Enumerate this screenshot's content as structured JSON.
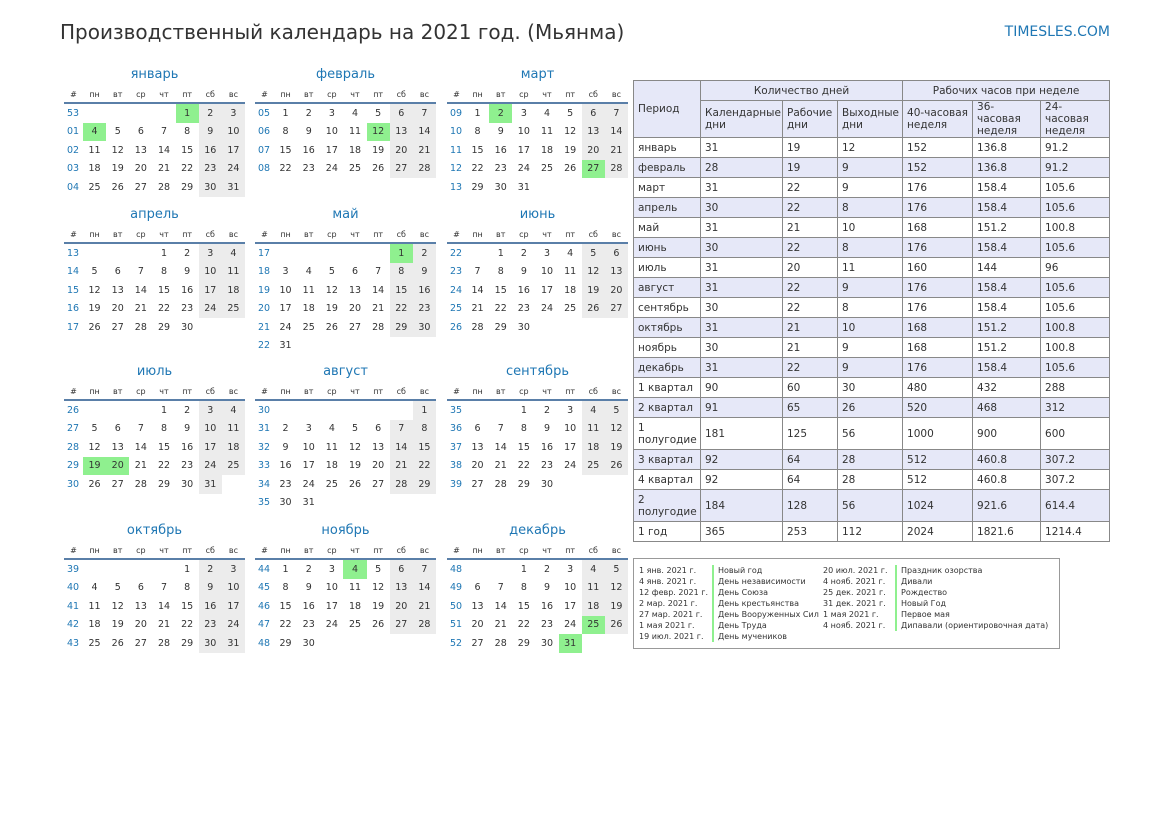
{
  "title": "Производственный календарь на 2021 год. (Мьянма)",
  "site": "TIMESLES.COM",
  "colors": {
    "accent": "#1f77b4",
    "holiday": "#8ff08f",
    "weekend": "#ececec",
    "rule": "#5a7fa8",
    "table_alt": "#e6e8f8"
  },
  "weekday_header": [
    "#",
    "пн",
    "вт",
    "ср",
    "чт",
    "пт",
    "сб",
    "вс"
  ],
  "months": [
    {
      "name": "январь",
      "rows": [
        [
          "53",
          "",
          "",
          "",
          "",
          "1",
          "2",
          "3"
        ],
        [
          "01",
          "4",
          "5",
          "6",
          "7",
          "8",
          "9",
          "10"
        ],
        [
          "02",
          "11",
          "12",
          "13",
          "14",
          "15",
          "16",
          "17"
        ],
        [
          "03",
          "18",
          "19",
          "20",
          "21",
          "22",
          "23",
          "24"
        ],
        [
          "04",
          "25",
          "26",
          "27",
          "28",
          "29",
          "30",
          "31"
        ]
      ],
      "holidays": [
        "1",
        "4"
      ]
    },
    {
      "name": "февраль",
      "rows": [
        [
          "05",
          "1",
          "2",
          "3",
          "4",
          "5",
          "6",
          "7"
        ],
        [
          "06",
          "8",
          "9",
          "10",
          "11",
          "12",
          "13",
          "14"
        ],
        [
          "07",
          "15",
          "16",
          "17",
          "18",
          "19",
          "20",
          "21"
        ],
        [
          "08",
          "22",
          "23",
          "24",
          "25",
          "26",
          "27",
          "28"
        ]
      ],
      "holidays": [
        "12"
      ]
    },
    {
      "name": "март",
      "rows": [
        [
          "09",
          "1",
          "2",
          "3",
          "4",
          "5",
          "6",
          "7"
        ],
        [
          "10",
          "8",
          "9",
          "10",
          "11",
          "12",
          "13",
          "14"
        ],
        [
          "11",
          "15",
          "16",
          "17",
          "18",
          "19",
          "20",
          "21"
        ],
        [
          "12",
          "22",
          "23",
          "24",
          "25",
          "26",
          "27",
          "28"
        ],
        [
          "13",
          "29",
          "30",
          "31",
          "",
          "",
          "",
          ""
        ]
      ],
      "holidays": [
        "2",
        "27"
      ]
    },
    {
      "name": "апрель",
      "rows": [
        [
          "13",
          "",
          "",
          "",
          "1",
          "2",
          "3",
          "4"
        ],
        [
          "14",
          "5",
          "6",
          "7",
          "8",
          "9",
          "10",
          "11"
        ],
        [
          "15",
          "12",
          "13",
          "14",
          "15",
          "16",
          "17",
          "18"
        ],
        [
          "16",
          "19",
          "20",
          "21",
          "22",
          "23",
          "24",
          "25"
        ],
        [
          "17",
          "26",
          "27",
          "28",
          "29",
          "30",
          "",
          ""
        ]
      ],
      "holidays": []
    },
    {
      "name": "май",
      "rows": [
        [
          "17",
          "",
          "",
          "",
          "",
          "",
          "1",
          "2"
        ],
        [
          "18",
          "3",
          "4",
          "5",
          "6",
          "7",
          "8",
          "9"
        ],
        [
          "19",
          "10",
          "11",
          "12",
          "13",
          "14",
          "15",
          "16"
        ],
        [
          "20",
          "17",
          "18",
          "19",
          "20",
          "21",
          "22",
          "23"
        ],
        [
          "21",
          "24",
          "25",
          "26",
          "27",
          "28",
          "29",
          "30"
        ],
        [
          "22",
          "31",
          "",
          "",
          "",
          "",
          "",
          ""
        ]
      ],
      "holidays": [
        "1"
      ]
    },
    {
      "name": "июнь",
      "rows": [
        [
          "22",
          "",
          "1",
          "2",
          "3",
          "4",
          "5",
          "6"
        ],
        [
          "23",
          "7",
          "8",
          "9",
          "10",
          "11",
          "12",
          "13"
        ],
        [
          "24",
          "14",
          "15",
          "16",
          "17",
          "18",
          "19",
          "20"
        ],
        [
          "25",
          "21",
          "22",
          "23",
          "24",
          "25",
          "26",
          "27"
        ],
        [
          "26",
          "28",
          "29",
          "30",
          "",
          "",
          "",
          ""
        ]
      ],
      "holidays": []
    },
    {
      "name": "июль",
      "rows": [
        [
          "26",
          "",
          "",
          "",
          "1",
          "2",
          "3",
          "4"
        ],
        [
          "27",
          "5",
          "6",
          "7",
          "8",
          "9",
          "10",
          "11"
        ],
        [
          "28",
          "12",
          "13",
          "14",
          "15",
          "16",
          "17",
          "18"
        ],
        [
          "29",
          "19",
          "20",
          "21",
          "22",
          "23",
          "24",
          "25"
        ],
        [
          "30",
          "26",
          "27",
          "28",
          "29",
          "30",
          "31",
          ""
        ]
      ],
      "holidays": [
        "19",
        "20"
      ]
    },
    {
      "name": "август",
      "rows": [
        [
          "30",
          "",
          "",
          "",
          "",
          "",
          "",
          "1"
        ],
        [
          "31",
          "2",
          "3",
          "4",
          "5",
          "6",
          "7",
          "8"
        ],
        [
          "32",
          "9",
          "10",
          "11",
          "12",
          "13",
          "14",
          "15"
        ],
        [
          "33",
          "16",
          "17",
          "18",
          "19",
          "20",
          "21",
          "22"
        ],
        [
          "34",
          "23",
          "24",
          "25",
          "26",
          "27",
          "28",
          "29"
        ],
        [
          "35",
          "30",
          "31",
          "",
          "",
          "",
          "",
          ""
        ]
      ],
      "holidays": []
    },
    {
      "name": "сентябрь",
      "rows": [
        [
          "35",
          "",
          "",
          "1",
          "2",
          "3",
          "4",
          "5"
        ],
        [
          "36",
          "6",
          "7",
          "8",
          "9",
          "10",
          "11",
          "12"
        ],
        [
          "37",
          "13",
          "14",
          "15",
          "16",
          "17",
          "18",
          "19"
        ],
        [
          "38",
          "20",
          "21",
          "22",
          "23",
          "24",
          "25",
          "26"
        ],
        [
          "39",
          "27",
          "28",
          "29",
          "30",
          "",
          "",
          ""
        ]
      ],
      "holidays": []
    },
    {
      "name": "октябрь",
      "rows": [
        [
          "39",
          "",
          "",
          "",
          "",
          "1",
          "2",
          "3"
        ],
        [
          "40",
          "4",
          "5",
          "6",
          "7",
          "8",
          "9",
          "10"
        ],
        [
          "41",
          "11",
          "12",
          "13",
          "14",
          "15",
          "16",
          "17"
        ],
        [
          "42",
          "18",
          "19",
          "20",
          "21",
          "22",
          "23",
          "24"
        ],
        [
          "43",
          "25",
          "26",
          "27",
          "28",
          "29",
          "30",
          "31"
        ]
      ],
      "holidays": []
    },
    {
      "name": "ноябрь",
      "rows": [
        [
          "44",
          "1",
          "2",
          "3",
          "4",
          "5",
          "6",
          "7"
        ],
        [
          "45",
          "8",
          "9",
          "10",
          "11",
          "12",
          "13",
          "14"
        ],
        [
          "46",
          "15",
          "16",
          "17",
          "18",
          "19",
          "20",
          "21"
        ],
        [
          "47",
          "22",
          "23",
          "24",
          "25",
          "26",
          "27",
          "28"
        ],
        [
          "48",
          "29",
          "30",
          "",
          "",
          "",
          "",
          ""
        ]
      ],
      "holidays": [
        "4"
      ]
    },
    {
      "name": "декабрь",
      "rows": [
        [
          "48",
          "",
          "",
          "1",
          "2",
          "3",
          "4",
          "5"
        ],
        [
          "49",
          "6",
          "7",
          "8",
          "9",
          "10",
          "11",
          "12"
        ],
        [
          "50",
          "13",
          "14",
          "15",
          "16",
          "17",
          "18",
          "19"
        ],
        [
          "51",
          "20",
          "21",
          "22",
          "23",
          "24",
          "25",
          "26"
        ],
        [
          "52",
          "27",
          "28",
          "29",
          "30",
          "31",
          "",
          ""
        ]
      ],
      "holidays": [
        "25",
        "31"
      ]
    }
  ],
  "summary": {
    "period": "Период",
    "days_group": "Количество дней",
    "hours_group": "Рабочих часов при неделе",
    "col_calendar": "Календарные дни",
    "col_work": "Рабочие дни",
    "col_off": "Выходные дни",
    "col_40": "40-часовая неделя",
    "col_36": "36-часовая неделя",
    "col_24": "24-часовая неделя",
    "rows": [
      [
        "январь",
        "31",
        "19",
        "12",
        "152",
        "136.8",
        "91.2"
      ],
      [
        "февраль",
        "28",
        "19",
        "9",
        "152",
        "136.8",
        "91.2"
      ],
      [
        "март",
        "31",
        "22",
        "9",
        "176",
        "158.4",
        "105.6"
      ],
      [
        "апрель",
        "30",
        "22",
        "8",
        "176",
        "158.4",
        "105.6"
      ],
      [
        "май",
        "31",
        "21",
        "10",
        "168",
        "151.2",
        "100.8"
      ],
      [
        "июнь",
        "30",
        "22",
        "8",
        "176",
        "158.4",
        "105.6"
      ],
      [
        "июль",
        "31",
        "20",
        "11",
        "160",
        "144",
        "96"
      ],
      [
        "август",
        "31",
        "22",
        "9",
        "176",
        "158.4",
        "105.6"
      ],
      [
        "сентябрь",
        "30",
        "22",
        "8",
        "176",
        "158.4",
        "105.6"
      ],
      [
        "октябрь",
        "31",
        "21",
        "10",
        "168",
        "151.2",
        "100.8"
      ],
      [
        "ноябрь",
        "30",
        "21",
        "9",
        "168",
        "151.2",
        "100.8"
      ],
      [
        "декабрь",
        "31",
        "22",
        "9",
        "176",
        "158.4",
        "105.6"
      ],
      [
        "1 квартал",
        "90",
        "60",
        "30",
        "480",
        "432",
        "288"
      ],
      [
        "2 квартал",
        "91",
        "65",
        "26",
        "520",
        "468",
        "312"
      ],
      [
        "1 полугодие",
        "181",
        "125",
        "56",
        "1000",
        "900",
        "600"
      ],
      [
        "3 квартал",
        "92",
        "64",
        "28",
        "512",
        "460.8",
        "307.2"
      ],
      [
        "4 квартал",
        "92",
        "64",
        "28",
        "512",
        "460.8",
        "307.2"
      ],
      [
        "2 полугодие",
        "184",
        "128",
        "56",
        "1024",
        "921.6",
        "614.4"
      ],
      [
        "1 год",
        "365",
        "253",
        "112",
        "2024",
        "1821.6",
        "1214.4"
      ]
    ]
  },
  "holidays_list": {
    "left": [
      {
        "date": "1 янв. 2021 г.",
        "name": "Новый год"
      },
      {
        "date": "4 янв. 2021 г.",
        "name": "День независимости"
      },
      {
        "date": "12 февр. 2021 г.",
        "name": "День Союза"
      },
      {
        "date": "2 мар. 2021 г.",
        "name": "День крестьянства"
      },
      {
        "date": "27 мар. 2021 г.",
        "name": "День Вооруженных Сил"
      },
      {
        "date": "1 мая 2021 г.",
        "name": "День Труда"
      },
      {
        "date": "19 июл. 2021 г.",
        "name": "День мучеников"
      }
    ],
    "right": [
      {
        "date": "20 июл. 2021 г.",
        "name": "Праздник озорства"
      },
      {
        "date": "4 нояб. 2021 г.",
        "name": "Дивали"
      },
      {
        "date": "25 дек. 2021 г.",
        "name": "Рождество"
      },
      {
        "date": "31 дек. 2021 г.",
        "name": "Новый Год"
      },
      {
        "date": "1 мая 2021 г.",
        "name": "Первое мая"
      },
      {
        "date": "4 нояб. 2021 г.",
        "name": "Дипавали (ориентировочная дата)"
      }
    ]
  }
}
